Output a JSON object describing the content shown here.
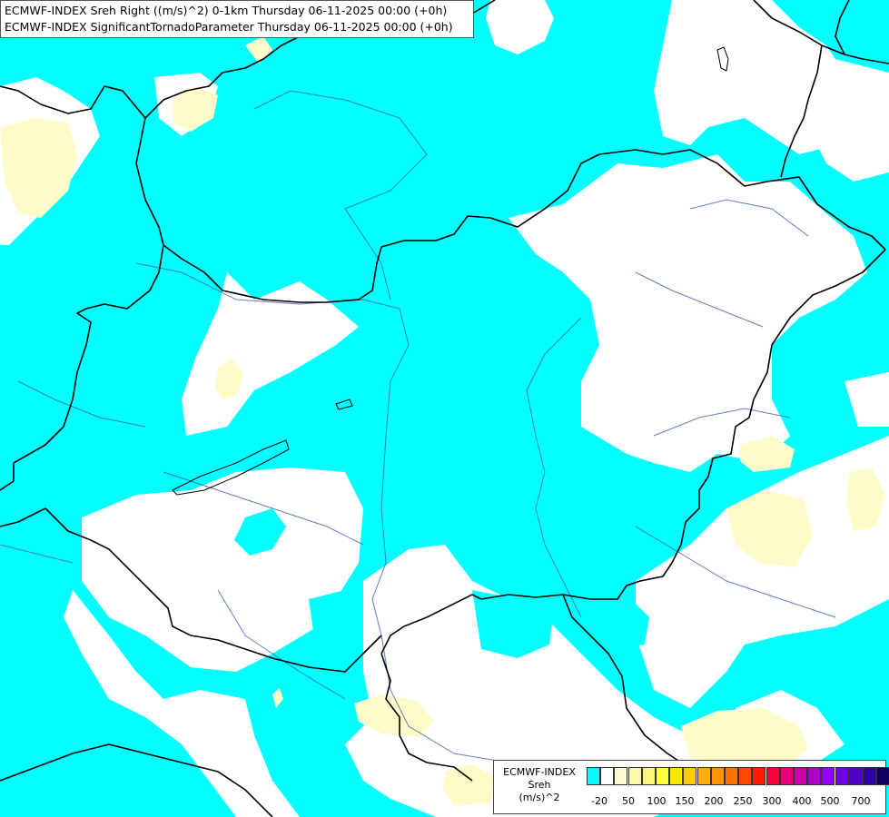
{
  "title": {
    "line1": "ECMWF-INDEX Sreh Right ((m/s)^2) 0-1km Thursday 06-11-2025 00:00 (+0h)",
    "line2": "ECMWF-INDEX SignificantTornadoParameter Thursday 06-11-2025 00:00 (+0h)"
  },
  "legend": {
    "line1": "ECMWF-INDEX",
    "line2": "Sreh",
    "line3": "(m/s)^2",
    "colors": [
      "#00ffff",
      "#ffffff",
      "#fffbd0",
      "#fff8a8",
      "#fff57a",
      "#ffff40",
      "#ffe600",
      "#ffcc00",
      "#ffb000",
      "#ff9400",
      "#ff7000",
      "#ff4800",
      "#ff1a00",
      "#ff0040",
      "#e6007a",
      "#cc00a8",
      "#b000d0",
      "#9400ff",
      "#7000e6",
      "#5000cc",
      "#3000a0",
      "#100060"
    ],
    "ticks": [
      "-20",
      "50",
      "100",
      "150",
      "200",
      "250",
      "300",
      "400",
      "500",
      "700"
    ]
  },
  "colors": {
    "cyan": "#00ffff",
    "white": "#ffffff",
    "pale_yellow": "#fffbc8",
    "border": "#000000",
    "river": "#3b5fb0"
  }
}
